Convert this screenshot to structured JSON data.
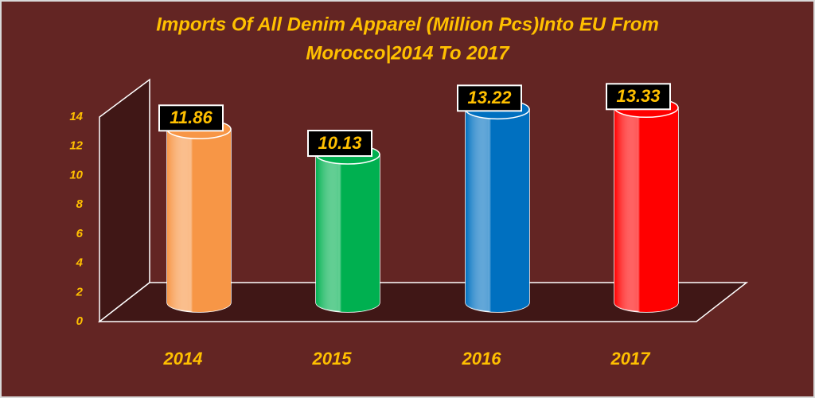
{
  "chart_data": {
    "type": "bar",
    "title": [
      "Imports Of All Denim Apparel (Million Pcs)Into EU From",
      "Morocco|2014 To 2017"
    ],
    "categories": [
      "2014",
      "2015",
      "2016",
      "2017"
    ],
    "series": [
      {
        "name": "Imports",
        "values": [
          11.86,
          10.13,
          13.22,
          13.33
        ],
        "colors": [
          "#f79646",
          "#00b050",
          "#0070c0",
          "#ff0000"
        ]
      }
    ],
    "ylim": [
      0,
      14
    ],
    "yticks": [
      0,
      2,
      4,
      6,
      8,
      10,
      12,
      14
    ],
    "grid": false
  }
}
